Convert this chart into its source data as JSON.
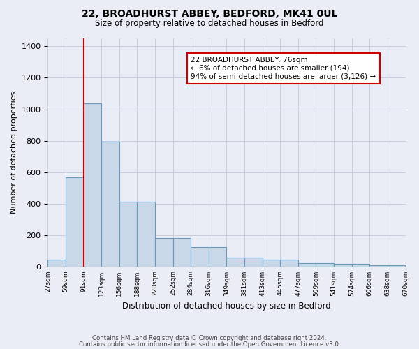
{
  "title1": "22, BROADHURST ABBEY, BEDFORD, MK41 0UL",
  "title2": "Size of property relative to detached houses in Bedford",
  "xlabel": "Distribution of detached houses by size in Bedford",
  "ylabel": "Number of detached properties",
  "bin_labels": [
    "27sqm",
    "59sqm",
    "91sqm",
    "123sqm",
    "156sqm",
    "188sqm",
    "220sqm",
    "252sqm",
    "284sqm",
    "316sqm",
    "349sqm",
    "381sqm",
    "413sqm",
    "445sqm",
    "477sqm",
    "509sqm",
    "541sqm",
    "574sqm",
    "606sqm",
    "638sqm",
    "670sqm"
  ],
  "bar_heights": [
    47,
    570,
    1040,
    793,
    415,
    415,
    182,
    182,
    127,
    127,
    60,
    60,
    47,
    47,
    25,
    25,
    18,
    18,
    11,
    11
  ],
  "bar_color": "#c8d8e8",
  "bar_edge_color": "#6699bb",
  "grid_color": "#c8cce0",
  "bg_color": "#eaedf5",
  "annotation_text": "22 BROADHURST ABBEY: 76sqm\n← 6% of detached houses are smaller (194)\n94% of semi-detached houses are larger (3,126) →",
  "annotation_box_color": "#ffffff",
  "annotation_box_edge": "#cc0000",
  "footer1": "Contains HM Land Registry data © Crown copyright and database right 2024.",
  "footer2": "Contains public sector information licensed under the Open Government Licence v3.0.",
  "ylim": [
    0,
    1450
  ],
  "yticks": [
    0,
    200,
    400,
    600,
    800,
    1000,
    1200,
    1400
  ],
  "red_line_bar_index": 1.5,
  "n_bars": 20
}
